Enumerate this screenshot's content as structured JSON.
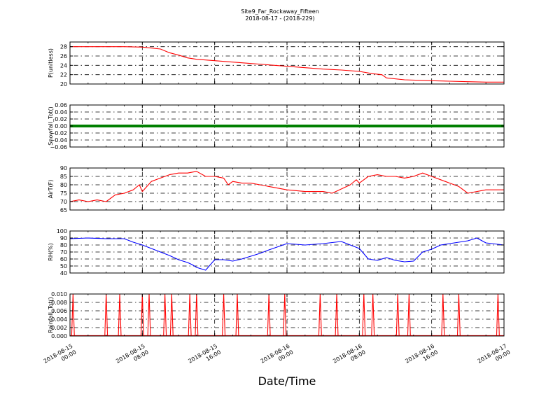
{
  "figure": {
    "title_line1": "Site9_Far_Rockaway_Fifteen",
    "title_line2": "2018-08-17 - (2018-229)",
    "xlabel": "Date/Time"
  },
  "chart_data": {
    "type": "line",
    "x_axis": {
      "range": [
        "2018-08-15 00:00",
        "2018-08-17 00:00"
      ],
      "ticks": [
        {
          "time": "2018-08-15 00:00",
          "line1": "2018-08-15",
          "line2": "00:00"
        },
        {
          "time": "2018-08-15 08:00",
          "line1": "2018-08-15",
          "line2": "08:00"
        },
        {
          "time": "2018-08-15 16:00",
          "line1": "2018-08-15",
          "line2": "16:00"
        },
        {
          "time": "2018-08-16 00:00",
          "line1": "2018-08-16",
          "line2": "00:00"
        },
        {
          "time": "2018-08-16 08:00",
          "line1": "2018-08-16",
          "line2": "08:00"
        },
        {
          "time": "2018-08-16 16:00",
          "line1": "2018-08-16",
          "line2": "16:00"
        },
        {
          "time": "2018-08-17 00:00",
          "line1": "2018-08-17",
          "line2": "00:00"
        }
      ]
    },
    "panels": [
      {
        "ylabel": "P(unitless)",
        "ylim": [
          20,
          29
        ],
        "yticks": [
          20,
          22,
          24,
          26,
          28
        ],
        "ytick_labels": [
          "20",
          "22",
          "24",
          "26",
          "28"
        ],
        "color": "#ff0000",
        "style": "line",
        "x": [
          "2018-08-15 00:00",
          "2018-08-15 03:00",
          "2018-08-15 06:00",
          "2018-08-15 08:00",
          "2018-08-15 10:00",
          "2018-08-15 11:00",
          "2018-08-15 12:00",
          "2018-08-15 13:00",
          "2018-08-15 14:00",
          "2018-08-15 16:00",
          "2018-08-15 18:00",
          "2018-08-15 20:00",
          "2018-08-15 22:00",
          "2018-08-16 00:00",
          "2018-08-16 02:00",
          "2018-08-16 04:00",
          "2018-08-16 06:00",
          "2018-08-16 08:00",
          "2018-08-16 09:30",
          "2018-08-16 10:30",
          "2018-08-16 11:00",
          "2018-08-16 13:00",
          "2018-08-16 16:00",
          "2018-08-16 18:00",
          "2018-08-16 20:00",
          "2018-08-16 22:00",
          "2018-08-17 00:00"
        ],
        "values": [
          28.0,
          28.0,
          28.0,
          27.9,
          27.5,
          26.7,
          26.2,
          25.6,
          25.3,
          25.0,
          24.7,
          24.4,
          24.1,
          23.8,
          23.5,
          23.2,
          23.0,
          22.7,
          22.2,
          22.0,
          21.3,
          20.9,
          20.7,
          20.6,
          20.5,
          20.4,
          20.4
        ]
      },
      {
        "ylabel": "Snowfall_Tot()",
        "ylim": [
          -0.06,
          0.06
        ],
        "yticks": [
          -0.06,
          -0.04,
          -0.02,
          0.0,
          0.02,
          0.04,
          0.06
        ],
        "ytick_labels": [
          "−0.06",
          "−0.04",
          "−0.02",
          "0.00",
          "0.02",
          "0.04",
          "0.06"
        ],
        "color": "#008000",
        "style": "thick",
        "x": [
          "2018-08-15 00:00",
          "2018-08-17 00:00"
        ],
        "values": [
          0.0,
          0.0
        ]
      },
      {
        "ylabel": "AirT(F)",
        "ylim": [
          65,
          90
        ],
        "yticks": [
          65,
          70,
          75,
          80,
          85,
          90
        ],
        "ytick_labels": [
          "65",
          "70",
          "75",
          "80",
          "85",
          "90"
        ],
        "color": "#ff0000",
        "style": "line",
        "x": [
          "2018-08-15 00:00",
          "2018-08-15 01:00",
          "2018-08-15 02:00",
          "2018-08-15 03:00",
          "2018-08-15 04:00",
          "2018-08-15 05:00",
          "2018-08-15 06:00",
          "2018-08-15 07:00",
          "2018-08-15 07:40",
          "2018-08-15 08:00",
          "2018-08-15 09:00",
          "2018-08-15 10:00",
          "2018-08-15 11:00",
          "2018-08-15 12:00",
          "2018-08-15 13:00",
          "2018-08-15 14:00",
          "2018-08-15 15:00",
          "2018-08-15 16:00",
          "2018-08-15 17:00",
          "2018-08-15 17:30",
          "2018-08-15 18:00",
          "2018-08-15 19:00",
          "2018-08-15 20:00",
          "2018-08-15 21:00",
          "2018-08-15 22:00",
          "2018-08-16 00:00",
          "2018-08-16 02:00",
          "2018-08-16 03:00",
          "2018-08-16 04:00",
          "2018-08-16 05:00",
          "2018-08-16 07:00",
          "2018-08-16 07:40",
          "2018-08-16 08:00",
          "2018-08-16 09:00",
          "2018-08-16 10:00",
          "2018-08-16 11:00",
          "2018-08-16 12:00",
          "2018-08-16 13:00",
          "2018-08-16 14:00",
          "2018-08-16 15:00",
          "2018-08-16 16:00",
          "2018-08-16 17:00",
          "2018-08-16 17:30",
          "2018-08-16 18:00",
          "2018-08-16 19:00",
          "2018-08-16 20:00",
          "2018-08-16 22:00",
          "2018-08-17 00:00"
        ],
        "values": [
          70,
          71,
          70,
          71,
          70,
          74,
          75,
          77,
          80,
          76,
          82,
          84,
          86,
          87,
          87,
          88,
          85,
          85,
          84,
          80,
          82,
          81,
          81,
          80,
          79,
          77,
          76,
          76,
          76,
          75,
          80,
          83,
          81,
          85,
          86,
          85,
          85,
          84,
          85,
          87,
          85,
          83,
          82,
          81,
          79,
          75,
          77,
          77
        ]
      },
      {
        "ylabel": "RH(%)",
        "ylim": [
          40,
          100
        ],
        "yticks": [
          40,
          50,
          60,
          70,
          80,
          90,
          100
        ],
        "ytick_labels": [
          "40",
          "50",
          "60",
          "70",
          "80",
          "90",
          "100"
        ],
        "color": "#0000ff",
        "style": "line",
        "x": [
          "2018-08-15 00:00",
          "2018-08-15 02:00",
          "2018-08-15 04:00",
          "2018-08-15 06:00",
          "2018-08-15 07:00",
          "2018-08-15 08:00",
          "2018-08-15 09:00",
          "2018-08-15 10:00",
          "2018-08-15 11:00",
          "2018-08-15 12:00",
          "2018-08-15 13:00",
          "2018-08-15 13:30",
          "2018-08-15 14:00",
          "2018-08-15 15:00",
          "2018-08-15 16:00",
          "2018-08-15 17:00",
          "2018-08-15 18:00",
          "2018-08-15 19:00",
          "2018-08-15 20:00",
          "2018-08-15 21:00",
          "2018-08-15 22:00",
          "2018-08-16 00:00",
          "2018-08-16 02:00",
          "2018-08-16 04:00",
          "2018-08-16 06:00",
          "2018-08-16 07:00",
          "2018-08-16 08:00",
          "2018-08-16 09:00",
          "2018-08-16 10:00",
          "2018-08-16 11:00",
          "2018-08-16 12:00",
          "2018-08-16 13:00",
          "2018-08-16 14:00",
          "2018-08-16 15:00",
          "2018-08-16 16:00",
          "2018-08-16 17:00",
          "2018-08-16 18:00",
          "2018-08-16 19:00",
          "2018-08-16 20:00",
          "2018-08-16 21:00",
          "2018-08-16 22:00",
          "2018-08-17 00:00"
        ],
        "values": [
          89,
          90,
          89,
          89,
          84,
          80,
          75,
          70,
          65,
          59,
          55,
          52,
          48,
          44,
          59,
          59,
          57,
          60,
          64,
          68,
          73,
          82,
          80,
          82,
          85,
          80,
          75,
          60,
          58,
          62,
          58,
          56,
          57,
          70,
          74,
          80,
          82,
          84,
          86,
          90,
          83,
          80
        ]
      },
      {
        "ylabel": "Rainfall_Tot()",
        "ylim": [
          0,
          0.01
        ],
        "yticks": [
          0,
          0.002,
          0.004,
          0.006,
          0.008,
          0.01
        ],
        "ytick_labels": [
          "0.000",
          "0.002",
          "0.004",
          "0.006",
          "0.008",
          "0.010"
        ],
        "color": "#ff0000",
        "style": "spikes",
        "spike_value": 0.01,
        "spike_half_width_hours": 0.15,
        "spike_times": [
          "2018-08-15 00:20",
          "2018-08-15 04:00",
          "2018-08-15 05:30",
          "2018-08-15 08:00",
          "2018-08-15 08:45",
          "2018-08-15 10:30",
          "2018-08-15 11:15",
          "2018-08-15 13:15",
          "2018-08-15 14:00",
          "2018-08-15 17:00",
          "2018-08-15 18:30",
          "2018-08-15 22:00",
          "2018-08-15 23:45",
          "2018-08-16 03:40",
          "2018-08-16 05:30",
          "2018-08-16 08:30",
          "2018-08-16 09:30",
          "2018-08-16 12:15",
          "2018-08-16 13:30",
          "2018-08-16 17:15",
          "2018-08-16 19:00",
          "2018-08-16 23:20"
        ]
      }
    ]
  }
}
